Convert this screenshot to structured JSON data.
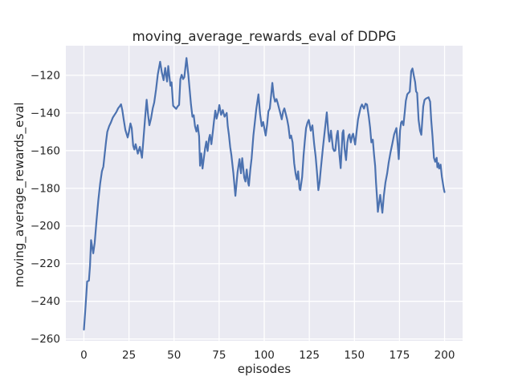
{
  "chart_data": {
    "type": "line",
    "title": "moving_average_rewards_eval of DDPG",
    "xlabel": "episodes",
    "ylabel": "moving_average_rewards_eval",
    "xlim": [
      -10,
      210
    ],
    "ylim": [
      -261,
      -104.3
    ],
    "xticks": [
      0,
      25,
      50,
      75,
      100,
      125,
      150,
      175,
      200
    ],
    "yticks": [
      -120,
      -140,
      -160,
      -180,
      -200,
      -220,
      -240,
      -260
    ],
    "xtick_labels": [
      "0",
      "25",
      "50",
      "75",
      "100",
      "125",
      "150",
      "175",
      "200"
    ],
    "ytick_labels": [
      "−120",
      "−140",
      "−160",
      "−180",
      "−200",
      "−220",
      "−240",
      "−260"
    ],
    "grid": true,
    "legend": false,
    "style": {
      "fig_bg": "#FFFFFF",
      "axes_bg": "#EAEAF2",
      "grid_color": "#FFFFFF",
      "line_color": "#4C72B0",
      "text_color": "#262626"
    },
    "series": [
      {
        "name": "moving_average_rewards_eval",
        "points": [
          [
            0,
            -255
          ],
          [
            0.7,
            -246
          ],
          [
            1.3,
            -237
          ],
          [
            1.8,
            -229.5
          ],
          [
            2.8,
            -229
          ],
          [
            3.4,
            -221
          ],
          [
            4,
            -207.5
          ],
          [
            5.2,
            -214.5
          ],
          [
            6,
            -209
          ],
          [
            7,
            -197
          ],
          [
            8,
            -186.5
          ],
          [
            9,
            -177.5
          ],
          [
            10,
            -171
          ],
          [
            10.8,
            -168.5
          ],
          [
            11.5,
            -162
          ],
          [
            12.3,
            -155
          ],
          [
            13,
            -150
          ],
          [
            14,
            -147
          ],
          [
            15,
            -145
          ],
          [
            16,
            -142.5
          ],
          [
            17,
            -141
          ],
          [
            18,
            -139.5
          ],
          [
            19,
            -137.5
          ],
          [
            20,
            -136.3
          ],
          [
            20.6,
            -135.4
          ],
          [
            21.3,
            -138.5
          ],
          [
            22.1,
            -143.7
          ],
          [
            23,
            -149
          ],
          [
            24.3,
            -153
          ],
          [
            25,
            -150
          ],
          [
            25.8,
            -145.5
          ],
          [
            26.5,
            -148
          ],
          [
            27.3,
            -157.3
          ],
          [
            28,
            -159.4
          ],
          [
            28.7,
            -156.6
          ],
          [
            29.9,
            -161.6
          ],
          [
            31,
            -158
          ],
          [
            32.2,
            -163.8
          ],
          [
            33,
            -154
          ],
          [
            34,
            -142
          ],
          [
            34.8,
            -133
          ],
          [
            35.6,
            -141
          ],
          [
            36.3,
            -146.5
          ],
          [
            37.2,
            -143
          ],
          [
            38.2,
            -137.5
          ],
          [
            39,
            -134.5
          ],
          [
            40,
            -127.5
          ],
          [
            41,
            -119.5
          ],
          [
            42.3,
            -112.8
          ],
          [
            43.2,
            -118.5
          ],
          [
            44.2,
            -122.6
          ],
          [
            45.1,
            -116.1
          ],
          [
            46.1,
            -123.3
          ],
          [
            46.8,
            -115.1
          ],
          [
            48,
            -125.5
          ],
          [
            48.6,
            -123.7
          ],
          [
            49.5,
            -136.2
          ],
          [
            50.3,
            -137
          ],
          [
            51.2,
            -137.8
          ],
          [
            52,
            -136.5
          ],
          [
            52.8,
            -135.7
          ],
          [
            53.5,
            -122
          ],
          [
            54.2,
            -119.7
          ],
          [
            55,
            -122
          ],
          [
            55.7,
            -121
          ],
          [
            56.9,
            -110.8
          ],
          [
            57.9,
            -119.7
          ],
          [
            58.7,
            -128.3
          ],
          [
            59.4,
            -135.5
          ],
          [
            60.2,
            -142
          ],
          [
            60.9,
            -141.2
          ],
          [
            61.6,
            -147
          ],
          [
            62.4,
            -149.9
          ],
          [
            63.1,
            -146.5
          ],
          [
            63.9,
            -152.3
          ],
          [
            64.4,
            -168
          ],
          [
            65.1,
            -161.5
          ],
          [
            65.8,
            -169.5
          ],
          [
            66.5,
            -164
          ],
          [
            67.2,
            -159
          ],
          [
            67.9,
            -155.2
          ],
          [
            68.6,
            -160.2
          ],
          [
            69.4,
            -153.5
          ],
          [
            69.9,
            -151.6
          ],
          [
            70.7,
            -156.6
          ],
          [
            71.5,
            -150
          ],
          [
            72.1,
            -144.5
          ],
          [
            72.9,
            -138.7
          ],
          [
            73.6,
            -143
          ],
          [
            74.4,
            -140
          ],
          [
            75.1,
            -135.8
          ],
          [
            76.1,
            -141
          ],
          [
            77,
            -138.5
          ],
          [
            78,
            -142
          ],
          [
            79.2,
            -140
          ],
          [
            79.8,
            -147
          ],
          [
            80.4,
            -151.5
          ],
          [
            81.1,
            -158
          ],
          [
            81.8,
            -162.4
          ],
          [
            82.9,
            -172
          ],
          [
            84,
            -184
          ],
          [
            85.2,
            -171.4
          ],
          [
            86.3,
            -164.5
          ],
          [
            87.1,
            -172
          ],
          [
            87.8,
            -164
          ],
          [
            88.9,
            -174.3
          ],
          [
            89.6,
            -176.4
          ],
          [
            90.3,
            -170
          ],
          [
            91.1,
            -177.1
          ],
          [
            91.5,
            -178.6
          ],
          [
            92.3,
            -170
          ],
          [
            93,
            -164
          ],
          [
            94,
            -152
          ],
          [
            94.8,
            -145
          ],
          [
            95.6,
            -138
          ],
          [
            96.8,
            -130.1
          ],
          [
            97.7,
            -140.5
          ],
          [
            98.6,
            -147
          ],
          [
            99.4,
            -144.8
          ],
          [
            100.8,
            -152
          ],
          [
            101.6,
            -146.2
          ],
          [
            102.3,
            -139.1
          ],
          [
            103.1,
            -137.6
          ],
          [
            104.5,
            -124
          ],
          [
            105.3,
            -131.2
          ],
          [
            106,
            -134
          ],
          [
            106.8,
            -132.6
          ],
          [
            107.5,
            -134.8
          ],
          [
            109,
            -140.5
          ],
          [
            109.7,
            -143.4
          ],
          [
            110.5,
            -139.1
          ],
          [
            111.2,
            -137.6
          ],
          [
            112.7,
            -143.4
          ],
          [
            113.4,
            -147
          ],
          [
            114.2,
            -153.4
          ],
          [
            114.9,
            -152
          ],
          [
            115.7,
            -155.6
          ],
          [
            116.6,
            -166.7
          ],
          [
            117.4,
            -172.4
          ],
          [
            118.1,
            -175.3
          ],
          [
            118.8,
            -171
          ],
          [
            119.6,
            -180.3
          ],
          [
            120,
            -181
          ],
          [
            121,
            -174
          ],
          [
            121.8,
            -162.4
          ],
          [
            122.5,
            -155
          ],
          [
            123.2,
            -148
          ],
          [
            124,
            -145.1
          ],
          [
            124.7,
            -143.7
          ],
          [
            125.8,
            -149.4
          ],
          [
            126.7,
            -146.6
          ],
          [
            127.7,
            -156.6
          ],
          [
            128.5,
            -163
          ],
          [
            129.2,
            -171
          ],
          [
            130,
            -181
          ],
          [
            130.7,
            -177
          ],
          [
            131.4,
            -169.5
          ],
          [
            132.6,
            -158
          ],
          [
            133.6,
            -149.4
          ],
          [
            134.7,
            -139.7
          ],
          [
            135.6,
            -150.9
          ],
          [
            136.1,
            -155.2
          ],
          [
            137,
            -149.4
          ],
          [
            138.1,
            -158.8
          ],
          [
            138.8,
            -160.2
          ],
          [
            139.4,
            -159.9
          ],
          [
            140.2,
            -152
          ],
          [
            140.8,
            -149.5
          ],
          [
            141.7,
            -162.1
          ],
          [
            142.4,
            -169.3
          ],
          [
            143.4,
            -150.6
          ],
          [
            143.9,
            -149.2
          ],
          [
            144.6,
            -159.2
          ],
          [
            145.4,
            -165
          ],
          [
            146.1,
            -155.6
          ],
          [
            146.8,
            -152
          ],
          [
            147.3,
            -151.3
          ],
          [
            148,
            -155.6
          ],
          [
            148.8,
            -152
          ],
          [
            149.3,
            -151
          ],
          [
            150.4,
            -156.8
          ],
          [
            151.3,
            -149.2
          ],
          [
            152,
            -143.4
          ],
          [
            152.8,
            -139.8
          ],
          [
            153.5,
            -137
          ],
          [
            154.2,
            -135.5
          ],
          [
            155.3,
            -137.7
          ],
          [
            156.2,
            -135.1
          ],
          [
            157,
            -135.5
          ],
          [
            158,
            -142
          ],
          [
            158.7,
            -147.7
          ],
          [
            159.4,
            -155.6
          ],
          [
            160.2,
            -154.2
          ],
          [
            160.9,
            -162
          ],
          [
            161.5,
            -168
          ],
          [
            162,
            -177
          ],
          [
            162.6,
            -186
          ],
          [
            163,
            -192.5
          ],
          [
            164.3,
            -183.5
          ],
          [
            165.5,
            -193
          ],
          [
            166.3,
            -184
          ],
          [
            167.2,
            -177
          ],
          [
            168.2,
            -172
          ],
          [
            169,
            -166.5
          ],
          [
            170,
            -161
          ],
          [
            171,
            -156.5
          ],
          [
            172,
            -151.5
          ],
          [
            173.3,
            -148
          ],
          [
            174.1,
            -158
          ],
          [
            174.6,
            -164.5
          ],
          [
            175.3,
            -149.4
          ],
          [
            175.9,
            -145.1
          ],
          [
            176.4,
            -144.4
          ],
          [
            177.2,
            -146.5
          ],
          [
            178,
            -139
          ],
          [
            178.5,
            -133.6
          ],
          [
            179.3,
            -130.1
          ],
          [
            180,
            -129.4
          ],
          [
            180.7,
            -128.7
          ],
          [
            181.5,
            -117.8
          ],
          [
            182.2,
            -116.4
          ],
          [
            183,
            -120.5
          ],
          [
            183.7,
            -123.6
          ],
          [
            184.2,
            -128.6
          ],
          [
            184.8,
            -129.4
          ],
          [
            185.6,
            -143.7
          ],
          [
            186.4,
            -149.4
          ],
          [
            187.1,
            -151.6
          ],
          [
            188.2,
            -136.5
          ],
          [
            188.9,
            -133.1
          ],
          [
            189.6,
            -132.4
          ],
          [
            191.1,
            -131.7
          ],
          [
            192,
            -134
          ],
          [
            192.6,
            -143.7
          ],
          [
            193.3,
            -152.3
          ],
          [
            194.1,
            -163.8
          ],
          [
            194.8,
            -165.9
          ],
          [
            195.6,
            -163.8
          ],
          [
            196,
            -168.8
          ],
          [
            196.6,
            -166.7
          ],
          [
            197,
            -169.5
          ],
          [
            197.8,
            -167.4
          ],
          [
            198.5,
            -173.9
          ],
          [
            199.6,
            -180.3
          ],
          [
            200,
            -182
          ]
        ]
      }
    ]
  }
}
